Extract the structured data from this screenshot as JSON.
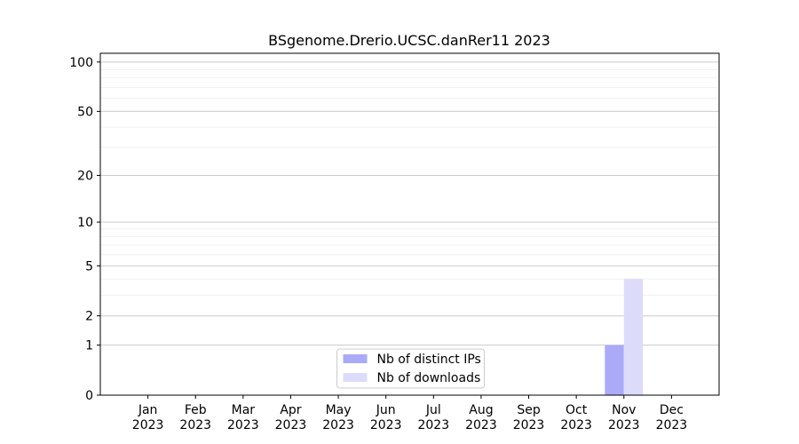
{
  "chart_data": {
    "type": "bar",
    "title": "BSgenome.Drerio.UCSC.danRer11 2023",
    "categories": [
      "Jan\n2023",
      "Feb\n2023",
      "Mar\n2023",
      "Apr\n2023",
      "May\n2023",
      "Jun\n2023",
      "Jul\n2023",
      "Aug\n2023",
      "Sep\n2023",
      "Oct\n2023",
      "Nov\n2023",
      "Dec\n2023"
    ],
    "series": [
      {
        "name": "Nb of distinct IPs",
        "color": "#aaaaf8",
        "values": [
          0,
          0,
          0,
          0,
          0,
          0,
          0,
          0,
          0,
          0,
          1,
          0
        ]
      },
      {
        "name": "Nb of downloads",
        "color": "#dcdcfa",
        "values": [
          0,
          0,
          0,
          0,
          0,
          0,
          0,
          0,
          0,
          0,
          4,
          0
        ]
      }
    ],
    "y_scale": "log1p",
    "ylim": [
      0,
      113
    ],
    "yticks": [
      0,
      1,
      2,
      5,
      10,
      20,
      50,
      100
    ],
    "minor_yticks": [
      3,
      4,
      6,
      7,
      8,
      9,
      30,
      40,
      60,
      70,
      80,
      90
    ],
    "grid": true,
    "legend_position": "lower center"
  }
}
